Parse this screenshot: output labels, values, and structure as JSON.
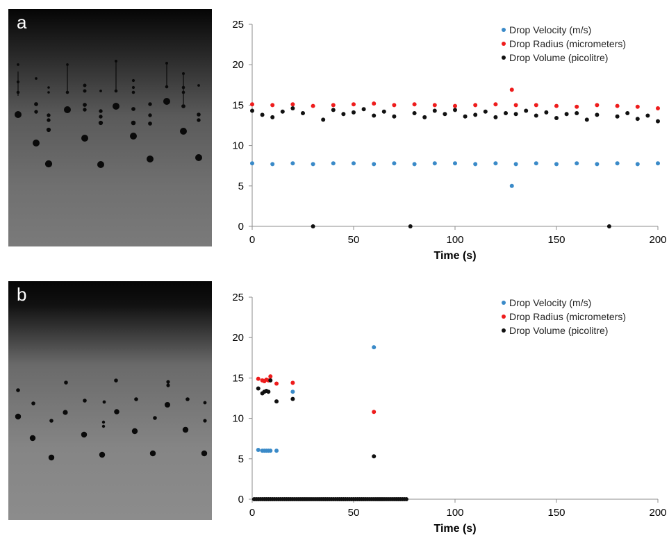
{
  "panels": [
    {
      "id": "a",
      "label": "a"
    },
    {
      "id": "b",
      "label": "b"
    }
  ],
  "colors": {
    "velocity": "#3a8ac8",
    "radius": "#ee1c1c",
    "volume": "#111111",
    "axis": "#8c8c8c"
  },
  "chart_data": [
    {
      "panel": "a",
      "type": "scatter",
      "xlabel": "Time (s)",
      "ylabel": "",
      "xlim": [
        0,
        200
      ],
      "ylim": [
        0,
        25
      ],
      "xticks": [
        0,
        50,
        100,
        150,
        200
      ],
      "yticks": [
        0,
        5,
        10,
        15,
        20,
        25
      ],
      "grid": false,
      "legend_position": "top-right",
      "series": [
        {
          "name": "Drop Velocity (m/s)",
          "color": "#3a8ac8",
          "x": [
            0,
            10,
            20,
            30,
            40,
            50,
            60,
            70,
            80,
            90,
            100,
            110,
            120,
            128,
            130,
            140,
            150,
            160,
            170,
            180,
            190,
            200
          ],
          "y": [
            7.8,
            7.7,
            7.8,
            7.7,
            7.8,
            7.8,
            7.7,
            7.8,
            7.7,
            7.8,
            7.8,
            7.7,
            7.8,
            5.0,
            7.7,
            7.8,
            7.7,
            7.8,
            7.7,
            7.8,
            7.7,
            7.8
          ]
        },
        {
          "name": "Drop Radius (micrometers)",
          "color": "#ee1c1c",
          "x": [
            0,
            10,
            20,
            30,
            40,
            50,
            60,
            70,
            80,
            90,
            100,
            110,
            120,
            128,
            130,
            140,
            150,
            160,
            170,
            180,
            190,
            200
          ],
          "y": [
            15.1,
            15.0,
            15.1,
            14.9,
            15.0,
            15.1,
            15.2,
            15.0,
            15.1,
            15.0,
            14.9,
            15.0,
            15.1,
            16.9,
            15.0,
            15.0,
            14.9,
            14.8,
            15.0,
            14.9,
            14.8,
            14.6
          ]
        },
        {
          "name": "Drop Volume (picolitre)",
          "color": "#111111",
          "x": [
            0,
            5,
            10,
            15,
            20,
            25,
            30,
            35,
            40,
            45,
            50,
            55,
            60,
            65,
            70,
            78,
            80,
            85,
            90,
            95,
            100,
            105,
            110,
            115,
            120,
            125,
            130,
            135,
            140,
            145,
            150,
            155,
            160,
            165,
            170,
            176,
            180,
            185,
            190,
            195,
            200
          ],
          "y": [
            14.3,
            13.8,
            13.5,
            14.2,
            14.6,
            14.0,
            0,
            13.2,
            14.4,
            13.9,
            14.1,
            14.5,
            13.7,
            14.2,
            13.6,
            0,
            14.0,
            13.5,
            14.3,
            13.9,
            14.4,
            13.6,
            13.8,
            14.2,
            13.5,
            14.0,
            13.9,
            14.3,
            13.7,
            14.1,
            13.4,
            13.9,
            14.0,
            13.2,
            13.8,
            0,
            13.6,
            14.0,
            13.3,
            13.7,
            13.0
          ]
        }
      ]
    },
    {
      "panel": "b",
      "type": "scatter",
      "xlabel": "Time (s)",
      "ylabel": "",
      "xlim": [
        0,
        200
      ],
      "ylim": [
        0,
        25
      ],
      "xticks": [
        0,
        50,
        100,
        150,
        200
      ],
      "yticks": [
        0,
        5,
        10,
        15,
        20,
        25
      ],
      "grid": false,
      "legend_position": "top-right",
      "series": [
        {
          "name": "Drop Velocity (m/s)",
          "color": "#3a8ac8",
          "x": [
            3,
            5,
            6,
            7,
            8,
            9,
            12,
            20,
            60
          ],
          "y": [
            6.1,
            6.0,
            6.0,
            6.0,
            6.0,
            6.0,
            6.0,
            13.3,
            18.8
          ]
        },
        {
          "name": "Drop Radius (micrometers)",
          "color": "#ee1c1c",
          "x": [
            3,
            5,
            6,
            7,
            8,
            9,
            12,
            20,
            60
          ],
          "y": [
            14.9,
            14.7,
            14.6,
            14.8,
            14.7,
            15.2,
            14.3,
            14.4,
            10.8
          ],
          "zero_x": []
        },
        {
          "name": "Drop Volume (picolitre)",
          "color": "#111111",
          "x": [
            1,
            2,
            3,
            4,
            5,
            6,
            7,
            8,
            9,
            10,
            11,
            12,
            13,
            14,
            15,
            16,
            17,
            18,
            19,
            20,
            21,
            22,
            23,
            24,
            25,
            26,
            27,
            28,
            29,
            30,
            31,
            32,
            33,
            34,
            35,
            36,
            37,
            38,
            39,
            40,
            41,
            42,
            43,
            44,
            45,
            46,
            47,
            48,
            49,
            50,
            51,
            52,
            53,
            54,
            55,
            56,
            57,
            58,
            59,
            60,
            61,
            62,
            63,
            64,
            65,
            66,
            67,
            68,
            69,
            70,
            71,
            72,
            73,
            74,
            75,
            76,
            3,
            5,
            6,
            7,
            8,
            9,
            12,
            20,
            60
          ],
          "y": [
            0,
            0,
            0,
            0,
            0,
            0,
            0,
            0,
            0,
            0,
            0,
            0,
            0,
            0,
            0,
            0,
            0,
            0,
            0,
            0,
            0,
            0,
            0,
            0,
            0,
            0,
            0,
            0,
            0,
            0,
            0,
            0,
            0,
            0,
            0,
            0,
            0,
            0,
            0,
            0,
            0,
            0,
            0,
            0,
            0,
            0,
            0,
            0,
            0,
            0,
            0,
            0,
            0,
            0,
            0,
            0,
            0,
            0,
            0,
            0,
            0,
            0,
            0,
            0,
            0,
            0,
            0,
            0,
            0,
            0,
            0,
            0,
            0,
            0,
            0,
            0,
            13.7,
            13.1,
            13.3,
            13.4,
            13.3,
            14.7,
            12.1,
            12.4,
            5.3
          ]
        }
      ]
    }
  ]
}
